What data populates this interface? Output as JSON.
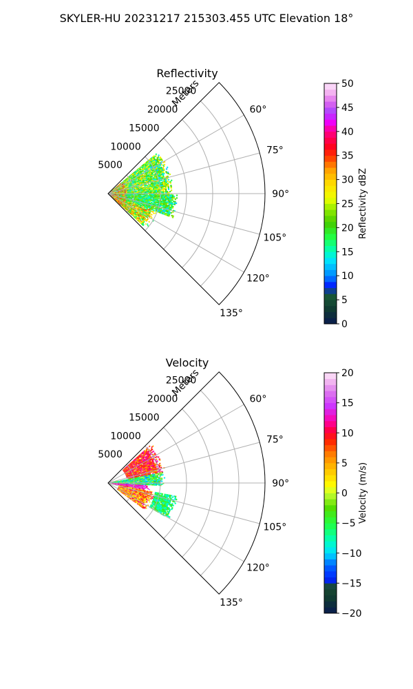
{
  "figure": {
    "title": "SKYLER-HU  20231217  215303.455 UTC Elevation 18°"
  },
  "chart_data": [
    {
      "type": "heatmap",
      "projection": "polar sector",
      "title": "Reflectivity",
      "range_axis_label": "Meters",
      "range_ticks": [
        5000,
        10000,
        15000,
        20000,
        25000
      ],
      "range_tick_labels": [
        "5000",
        "10000",
        "15000",
        "20000",
        "25000"
      ],
      "range_limit": [
        0,
        30000
      ],
      "azimuth_ticks": [
        60,
        75,
        90,
        105,
        120,
        135
      ],
      "azimuth_tick_labels": [
        "60°",
        "75°",
        "90°",
        "105°",
        "120°",
        "135°"
      ],
      "azimuth_range_deg": [
        45,
        135
      ],
      "grid": true,
      "colorbar": {
        "label": "Reflectivity dBZ",
        "ticks": [
          0,
          5,
          10,
          15,
          20,
          25,
          30,
          35,
          40,
          45,
          50
        ],
        "tick_labels": [
          "0",
          "5",
          "10",
          "15",
          "20",
          "25",
          "30",
          "35",
          "40",
          "45",
          "50"
        ],
        "range": [
          0,
          50
        ]
      },
      "data_extent": {
        "echo_azimuth_deg": [
          48,
          132
        ],
        "echo_range_m": [
          0,
          13500
        ],
        "dominant_value_range": [
          10,
          25
        ],
        "near_range_max_value": 38
      },
      "regions": [
        {
          "azimuth_range_deg": [
            50,
            90
          ],
          "range_m": [
            0,
            12500
          ],
          "value_range": [
            12,
            30
          ]
        },
        {
          "azimuth_range_deg": [
            90,
            110
          ],
          "range_m": [
            0,
            13500
          ],
          "value_range": [
            12,
            25
          ]
        },
        {
          "azimuth_range_deg": [
            110,
            132
          ],
          "range_m": [
            0,
            10000
          ],
          "value_range": [
            15,
            35
          ]
        }
      ]
    },
    {
      "type": "heatmap",
      "projection": "polar sector",
      "title": "Velocity",
      "range_axis_label": "Meters",
      "range_ticks": [
        5000,
        10000,
        15000,
        20000,
        25000
      ],
      "range_tick_labels": [
        "5000",
        "10000",
        "15000",
        "20000",
        "25000"
      ],
      "range_limit": [
        0,
        30000
      ],
      "azimuth_ticks": [
        60,
        75,
        90,
        105,
        120,
        135
      ],
      "azimuth_tick_labels": [
        "60°",
        "75°",
        "90°",
        "105°",
        "120°",
        "135°"
      ],
      "azimuth_range_deg": [
        45,
        135
      ],
      "grid": true,
      "colorbar": {
        "label": "Velocity (m/s)",
        "ticks": [
          -20,
          -15,
          -10,
          -5,
          0,
          5,
          10,
          15,
          20
        ],
        "tick_labels": [
          "−20",
          "−15",
          "−10",
          "−5",
          "0",
          "5",
          "10",
          "15",
          "20"
        ],
        "range": [
          -20,
          20
        ]
      },
      "data_extent": {
        "echo_azimuth_deg": [
          48,
          132
        ],
        "echo_range_m": [
          0,
          13500
        ]
      },
      "regions": [
        {
          "azimuth_range_deg": [
            48,
            78
          ],
          "range_m": [
            3500,
            11000
          ],
          "value_range": [
            5,
            13
          ]
        },
        {
          "azimuth_range_deg": [
            78,
            92
          ],
          "range_m": [
            0,
            11000
          ],
          "value_range": [
            -12,
            0
          ]
        },
        {
          "azimuth_range_deg": [
            92,
            100
          ],
          "range_m": [
            0,
            8000
          ],
          "value_range": [
            10,
            16
          ]
        },
        {
          "azimuth_range_deg": [
            100,
            125
          ],
          "range_m": [
            2000,
            9000
          ],
          "value_range": [
            0,
            12
          ]
        },
        {
          "azimuth_range_deg": [
            100,
            120
          ],
          "range_m": [
            9000,
            13500
          ],
          "value_range": [
            -10,
            -2
          ]
        }
      ]
    }
  ],
  "colors": {
    "grid": "#b0b0b0",
    "axis": "#000000"
  }
}
